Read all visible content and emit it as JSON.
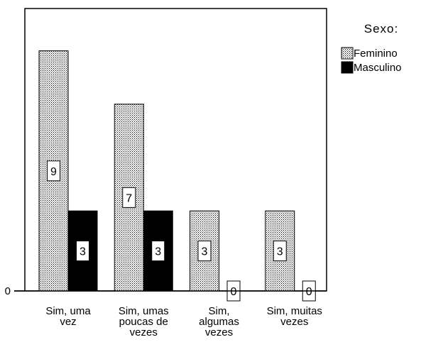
{
  "chart_data": {
    "type": "bar",
    "categories": [
      [
        "Sim, uma",
        "vez"
      ],
      [
        "Sim, umas",
        "poucas de",
        "vezes"
      ],
      [
        "Sim,",
        "algumas",
        "vezes"
      ],
      [
        "Sim, muitas",
        "vezes"
      ]
    ],
    "series": [
      {
        "name": "Feminino",
        "values": [
          9,
          7,
          3,
          3
        ],
        "pattern": "dotted",
        "color": "#ffffff"
      },
      {
        "name": "Masculino",
        "values": [
          3,
          3,
          0,
          0
        ],
        "pattern": "solid",
        "color": "#000000"
      }
    ],
    "y_ticks": [
      "0"
    ],
    "ylim": [
      0,
      10
    ],
    "legend": {
      "title": "Sexo:",
      "placement": "right"
    },
    "grid": false,
    "data_labels": true
  }
}
